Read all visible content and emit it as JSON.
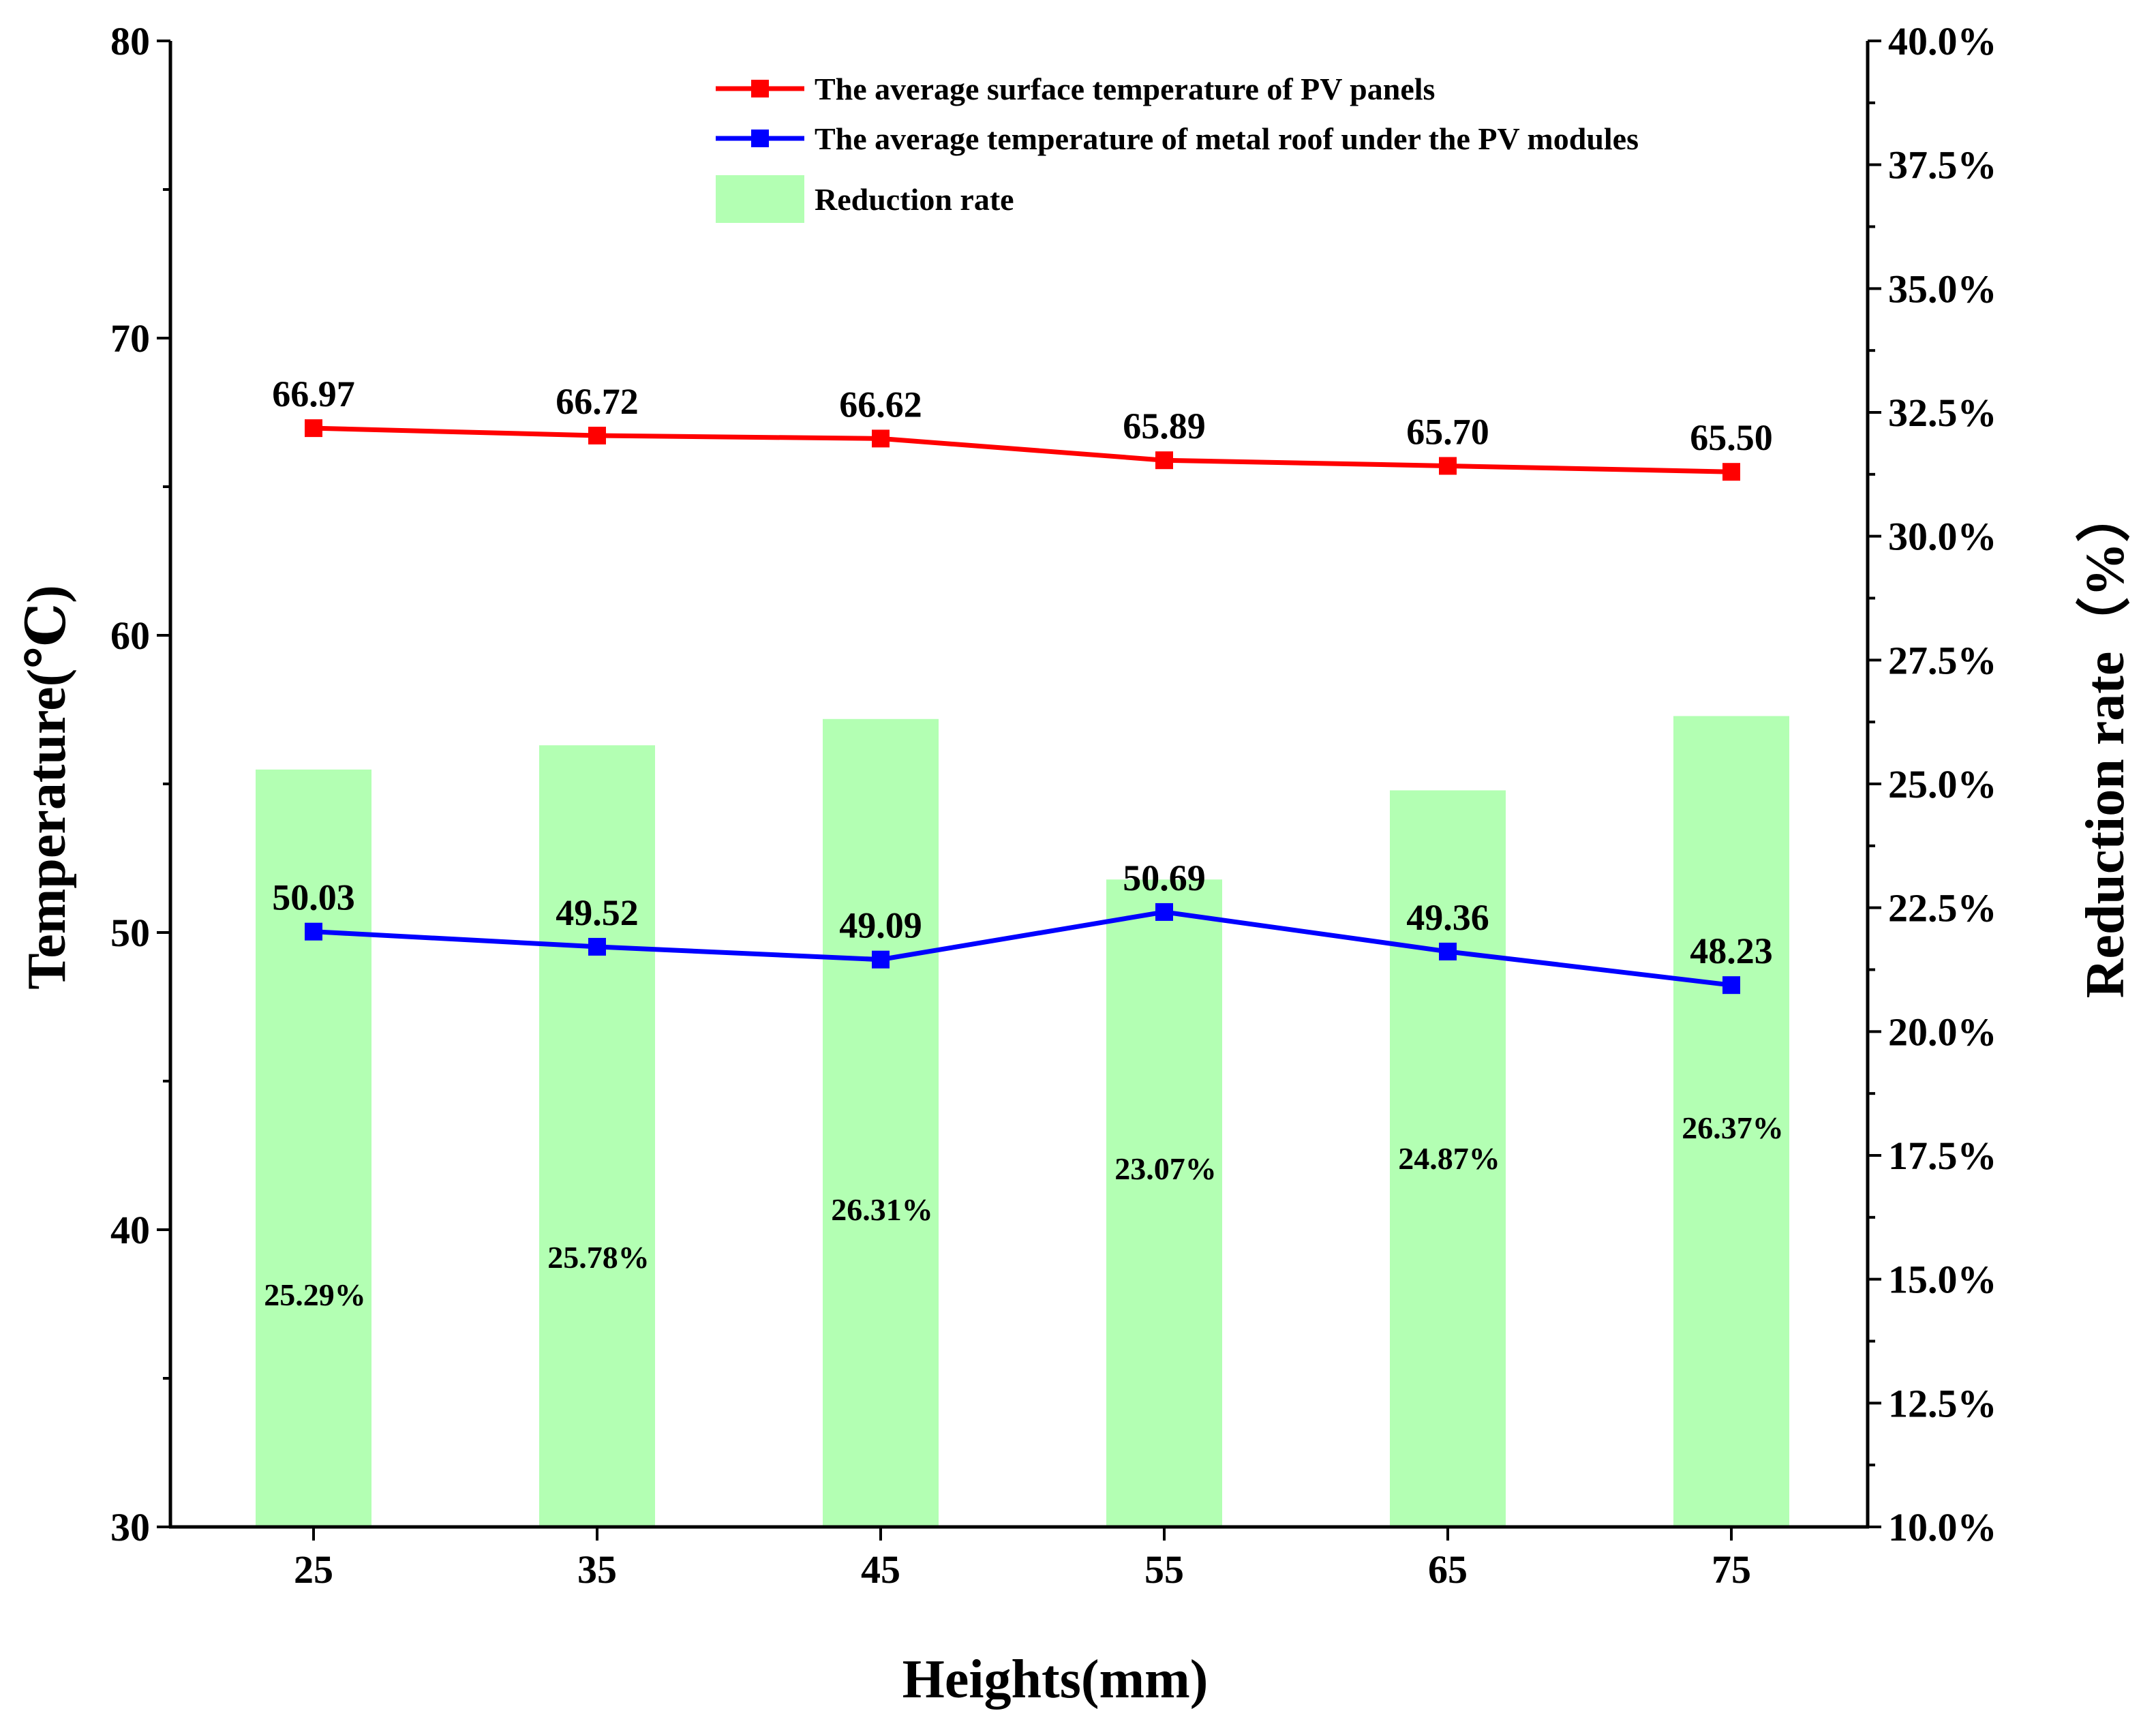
{
  "chart_data": {
    "type": "bar+line",
    "x": {
      "label": "Heights(mm)",
      "categories": [
        "25",
        "35",
        "45",
        "55",
        "65",
        "75"
      ]
    },
    "y_left": {
      "label": "Temperature(℃)",
      "range": [
        30,
        80
      ],
      "ticks": [
        "30",
        "40",
        "50",
        "60",
        "70",
        "80"
      ],
      "tick_values": [
        30,
        40,
        50,
        60,
        70,
        80
      ],
      "minor_step": 5
    },
    "y_right": {
      "label": "Reduction rate（%）",
      "range": [
        10,
        40
      ],
      "ticks": [
        "10.0%",
        "12.5%",
        "15.0%",
        "17.5%",
        "20.0%",
        "22.5%",
        "25.0%",
        "27.5%",
        "30.0%",
        "32.5%",
        "35.0%",
        "37.5%",
        "40.0%"
      ],
      "tick_values": [
        10,
        12.5,
        15,
        17.5,
        20,
        22.5,
        25,
        27.5,
        30,
        32.5,
        35,
        37.5,
        40
      ],
      "minor_step": 1.25
    },
    "series": [
      {
        "name": "The average surface temperature of PV panels",
        "kind": "line",
        "axis": "left",
        "color": "#ff0000",
        "values": [
          66.97,
          66.72,
          66.62,
          65.89,
          65.7,
          65.5
        ],
        "labels": [
          "66.97",
          "66.72",
          "66.62",
          "65.89",
          "65.70",
          "65.50"
        ]
      },
      {
        "name": "The average temperature of metal roof under the PV modules",
        "kind": "line",
        "axis": "left",
        "color": "#0000ff",
        "values": [
          50.03,
          49.52,
          49.09,
          50.69,
          49.36,
          48.23
        ],
        "labels": [
          "50.03",
          "49.52",
          "49.09",
          "50.69",
          "49.36",
          "48.23"
        ]
      },
      {
        "name": "Reduction rate",
        "kind": "bar",
        "axis": "right",
        "color": "#b3ffb3",
        "values": [
          25.29,
          25.78,
          26.31,
          23.07,
          24.87,
          26.37
        ],
        "labels": [
          "25.29%",
          "25.78%",
          "26.31%",
          "23.07%",
          "24.87%",
          "26.37%"
        ]
      }
    ],
    "legend": {
      "position": "top-center",
      "entries": [
        "The average surface temperature of PV panels",
        "The average temperature of metal roof under the PV modules",
        "Reduction rate"
      ]
    }
  }
}
